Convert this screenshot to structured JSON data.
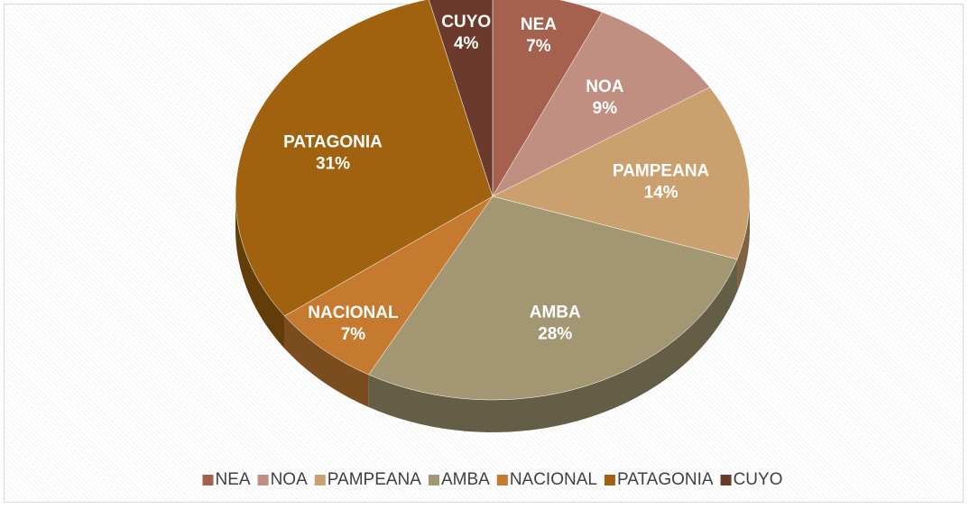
{
  "chart_data": {
    "type": "pie",
    "categories": [
      "NEA",
      "NOA",
      "PAMPEANA",
      "AMBA",
      "NACIONAL",
      "PATAGONIA",
      "CUYO"
    ],
    "values": [
      7,
      9,
      14,
      28,
      7,
      31,
      4
    ],
    "value_labels": [
      "7%",
      "9%",
      "14%",
      "28%",
      "7%",
      "31%",
      "4%"
    ],
    "colors": [
      "#a5604e",
      "#c08f82",
      "#c9a06e",
      "#a39773",
      "#c67a2f",
      "#a0620e",
      "#6b3a2c"
    ],
    "legend": "bottom"
  }
}
